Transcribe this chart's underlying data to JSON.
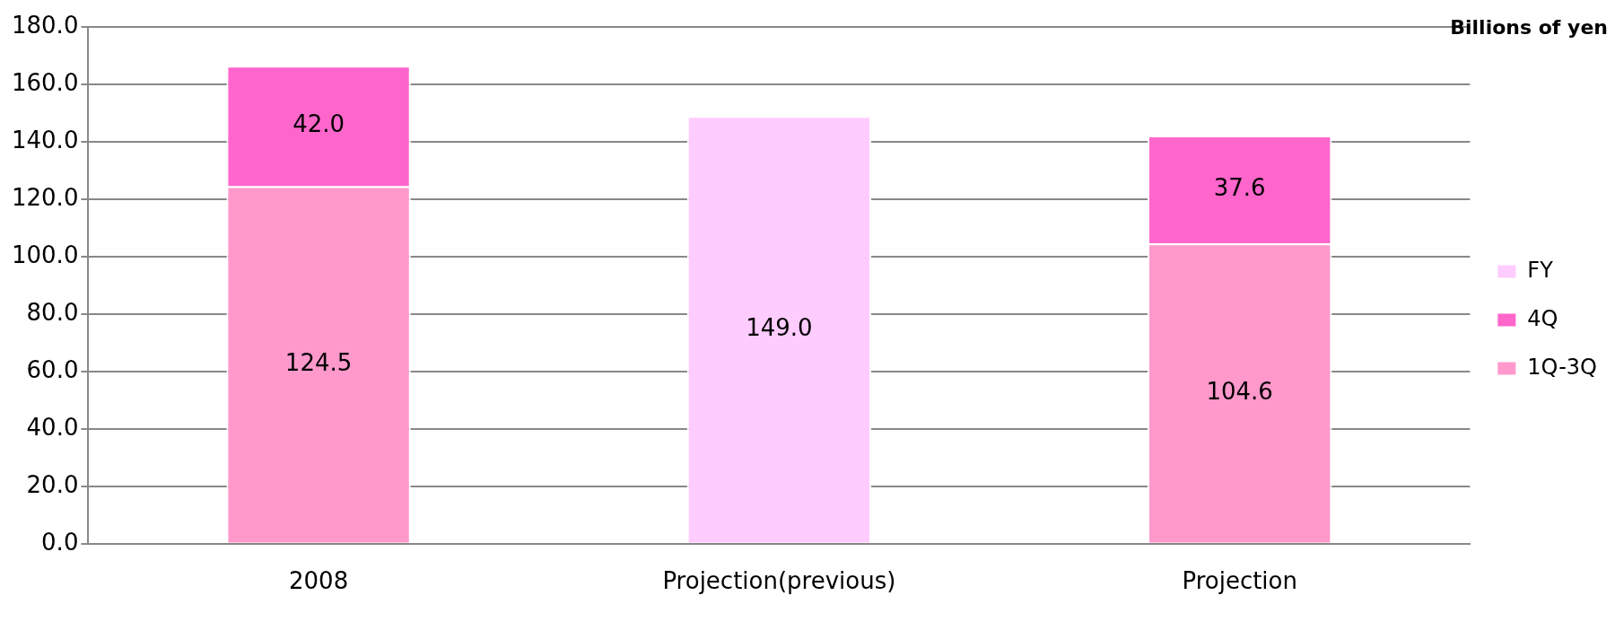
{
  "chart_data": {
    "type": "bar",
    "stacked": true,
    "ylabel": "Billions of yen",
    "categories": [
      "2008",
      "Projection(previous)",
      "Projection"
    ],
    "series": [
      {
        "name": "1Q-3Q",
        "color": "#ff99cc",
        "values": [
          124.5,
          null,
          104.6
        ],
        "value_labels": [
          "124.5",
          null,
          "104.6"
        ]
      },
      {
        "name": "4Q",
        "color": "#ff66cc",
        "values": [
          42.0,
          null,
          37.6
        ],
        "value_labels": [
          "42.0",
          null,
          "37.6"
        ]
      },
      {
        "name": "FY",
        "color": "#ffccff",
        "values": [
          null,
          149.0,
          null
        ],
        "value_labels": [
          null,
          "149.0",
          null
        ]
      }
    ],
    "ylim": [
      0,
      180
    ],
    "yticks": [
      {
        "value": 0,
        "label": "0.0"
      },
      {
        "value": 20,
        "label": "20.0"
      },
      {
        "value": 40,
        "label": "40.0"
      },
      {
        "value": 60,
        "label": "60.0"
      },
      {
        "value": 80,
        "label": "80.0"
      },
      {
        "value": 100,
        "label": "100.0"
      },
      {
        "value": 120,
        "label": "120.0"
      },
      {
        "value": 140,
        "label": "140.0"
      },
      {
        "value": 160,
        "label": "160.0"
      },
      {
        "value": 180,
        "label": "180.0"
      }
    ],
    "grid": "y",
    "legend": "right"
  }
}
